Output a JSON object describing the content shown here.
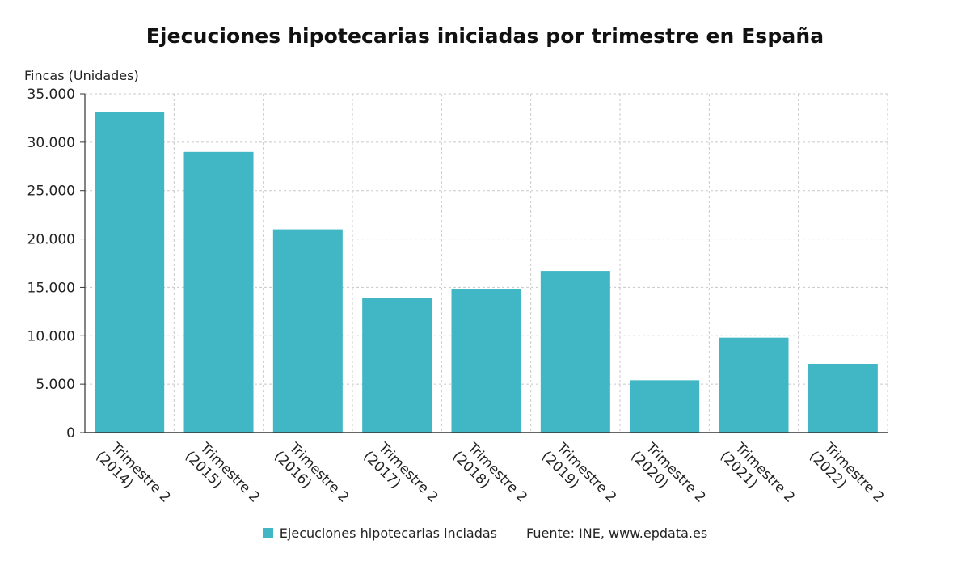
{
  "title": "Ejecuciones hipotecarias iniciadas por trimestre en España",
  "y_unit_label": "Fincas (Unidades)",
  "source_text": "Fuente: INE, www.epdata.es",
  "colors": {
    "bar": "#41b6c4",
    "grid": "#c8c8c8",
    "axis": "#333333"
  },
  "chart_data": {
    "type": "bar",
    "categories": [
      "Trimestre 2 (2014)",
      "Trimestre 2 (2015)",
      "Trimestre 2 (2016)",
      "Trimestre 2 (2017)",
      "Trimestre 2 (2018)",
      "Trimestre 2 (2019)",
      "Trimestre 2 (2020)",
      "Trimestre 2 (2021)",
      "Trimestre 2 (2022)"
    ],
    "category_lines": [
      [
        "Trimestre 2",
        "(2014)"
      ],
      [
        "Trimestre 2",
        "(2015)"
      ],
      [
        "Trimestre 2",
        "(2016)"
      ],
      [
        "Trimestre 2",
        "(2017)"
      ],
      [
        "Trimestre 2",
        "(2018)"
      ],
      [
        "Trimestre 2",
        "(2019)"
      ],
      [
        "Trimestre 2",
        "(2020)"
      ],
      [
        "Trimestre 2",
        "(2021)"
      ],
      [
        "Trimestre 2",
        "(2022)"
      ]
    ],
    "series": [
      {
        "name": "Ejecuciones hipotecarias inciadas",
        "values": [
          33100,
          29000,
          21000,
          13900,
          14800,
          16700,
          5400,
          9800,
          7100
        ]
      }
    ],
    "ylim": [
      0,
      35000
    ],
    "y_ticks": [
      0,
      5000,
      10000,
      15000,
      20000,
      25000,
      30000,
      35000
    ],
    "y_tick_labels": [
      "0",
      "5.000",
      "10.000",
      "15.000",
      "20.000",
      "25.000",
      "30.000",
      "35.000"
    ],
    "grid": true,
    "legend_position": "bottom"
  }
}
